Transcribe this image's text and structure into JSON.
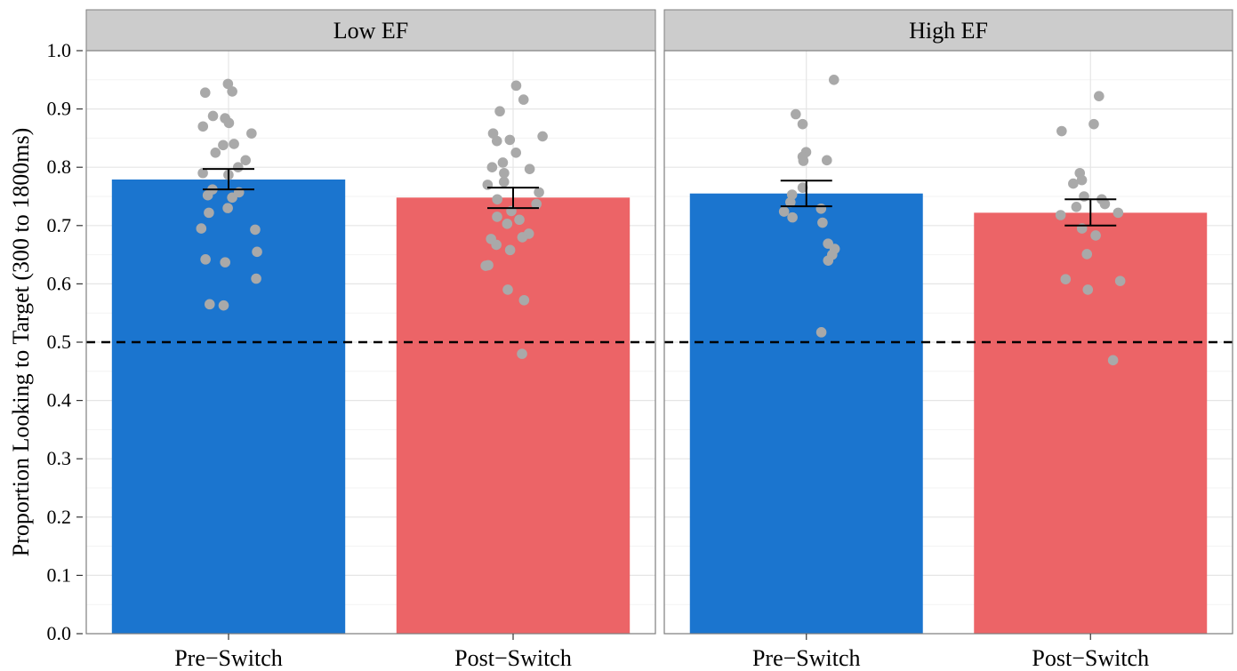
{
  "chart_data": {
    "type": "bar",
    "ylabel": "Proportion Looking to Target (300 to 1800ms)",
    "ylim": [
      0,
      1.0
    ],
    "yticks": [
      "0.0",
      "0.1",
      "0.2",
      "0.3",
      "0.4",
      "0.5",
      "0.6",
      "0.7",
      "0.8",
      "0.9",
      "1.0"
    ],
    "categories": [
      "Pre−Switch",
      "Post−Switch"
    ],
    "reference_line": 0.5,
    "grid": true,
    "colors": {
      "Pre-Switch": "#1b75cf",
      "Post-Switch": "#ec6467",
      "points": "#a9a9a9",
      "strip": "#cccccc"
    },
    "panels": [
      {
        "label": "Low EF",
        "bars": [
          {
            "mean": 0.779,
            "se_low": 0.762,
            "se_high": 0.797,
            "points": [
              0.943,
              0.93,
              0.928,
              0.888,
              0.884,
              0.876,
              0.87,
              0.858,
              0.84,
              0.838,
              0.825,
              0.812,
              0.8,
              0.79,
              0.787,
              0.762,
              0.757,
              0.752,
              0.748,
              0.73,
              0.722,
              0.695,
              0.693,
              0.655,
              0.642,
              0.637,
              0.609,
              0.565,
              0.563
            ]
          },
          {
            "mean": 0.748,
            "se_low": 0.73,
            "se_high": 0.765,
            "points": [
              0.94,
              0.916,
              0.896,
              0.858,
              0.853,
              0.847,
              0.845,
              0.825,
              0.808,
              0.8,
              0.797,
              0.79,
              0.775,
              0.77,
              0.757,
              0.745,
              0.737,
              0.725,
              0.715,
              0.71,
              0.703,
              0.686,
              0.68,
              0.677,
              0.667,
              0.658,
              0.632,
              0.631,
              0.59,
              0.572,
              0.48
            ]
          }
        ]
      },
      {
        "label": "High EF",
        "bars": [
          {
            "mean": 0.755,
            "se_low": 0.733,
            "se_high": 0.777,
            "points": [
              0.95,
              0.891,
              0.874,
              0.826,
              0.818,
              0.812,
              0.811,
              0.765,
              0.753,
              0.74,
              0.729,
              0.724,
              0.714,
              0.705,
              0.669,
              0.66,
              0.65,
              0.64,
              0.517
            ]
          },
          {
            "mean": 0.722,
            "se_low": 0.7,
            "se_high": 0.745,
            "points": [
              0.922,
              0.874,
              0.862,
              0.79,
              0.778,
              0.772,
              0.75,
              0.745,
              0.737,
              0.732,
              0.722,
              0.718,
              0.695,
              0.683,
              0.651,
              0.608,
              0.605,
              0.59,
              0.469
            ]
          }
        ]
      }
    ]
  }
}
